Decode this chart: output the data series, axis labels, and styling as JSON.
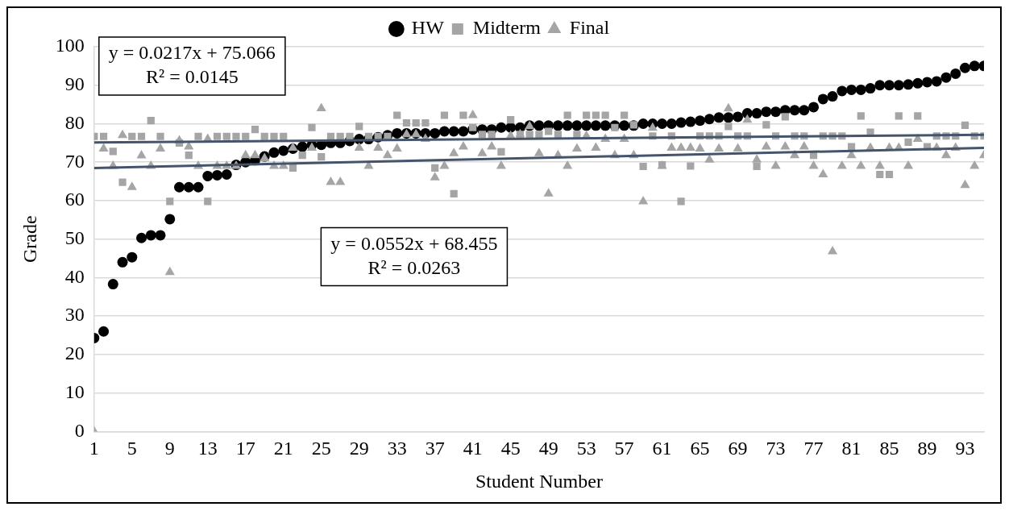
{
  "chart_data": {
    "type": "scatter",
    "xlabel": "Student Number",
    "ylabel": "Grade",
    "xlim": [
      1,
      95
    ],
    "xticks": [
      1,
      5,
      9,
      13,
      17,
      21,
      25,
      29,
      33,
      37,
      41,
      45,
      49,
      53,
      57,
      61,
      65,
      69,
      73,
      77,
      81,
      85,
      89,
      93
    ],
    "ylim": [
      0,
      100
    ],
    "yticks": [
      0,
      10,
      20,
      30,
      40,
      50,
      60,
      70,
      80,
      90,
      100
    ],
    "grid": "y",
    "legend": "top",
    "x": [
      1,
      2,
      3,
      4,
      5,
      6,
      7,
      8,
      9,
      10,
      11,
      12,
      13,
      14,
      15,
      16,
      17,
      18,
      19,
      20,
      21,
      22,
      23,
      24,
      25,
      26,
      27,
      28,
      29,
      30,
      31,
      32,
      33,
      34,
      35,
      36,
      37,
      38,
      39,
      40,
      41,
      42,
      43,
      44,
      45,
      46,
      47,
      48,
      49,
      50,
      51,
      52,
      53,
      54,
      55,
      56,
      57,
      58,
      59,
      60,
      61,
      62,
      63,
      64,
      65,
      66,
      67,
      68,
      69,
      70,
      71,
      72,
      73,
      74,
      75,
      76,
      77,
      78,
      79,
      80,
      81,
      82,
      83,
      84,
      85,
      86,
      87,
      88,
      89,
      90,
      91,
      92,
      93,
      94,
      95
    ],
    "annotations": [
      "y = 0.0217x + 75.066",
      "R² = 0.0145",
      "y = 0.0552x + 68.455",
      "R² = 0.0263"
    ],
    "series": [
      {
        "name": "HW",
        "color": "#000000",
        "marker": "circle",
        "values": [
          24.3,
          26,
          38.3,
          44,
          45.3,
          50.3,
          51,
          51,
          55.2,
          63.5,
          63.5,
          63.5,
          66.4,
          66.6,
          66.8,
          69.3,
          70,
          70.5,
          71.5,
          72.5,
          73,
          73.5,
          74,
          74.5,
          74.5,
          75,
          75,
          75.5,
          76,
          76,
          76.5,
          77,
          77.5,
          77.5,
          77.5,
          77.5,
          77.5,
          78,
          78,
          78,
          78.5,
          78.5,
          78.5,
          79,
          79,
          79,
          79.5,
          79.5,
          79.5,
          79.5,
          79.5,
          79.5,
          79.5,
          79.5,
          79.5,
          79.5,
          79.5,
          79.5,
          80,
          80,
          80,
          80,
          80.3,
          80.5,
          80.8,
          81.2,
          81.6,
          81.6,
          81.8,
          82.7,
          82.7,
          83.1,
          83.1,
          83.5,
          83.5,
          83.5,
          84.3,
          86.4,
          87.1,
          88.5,
          88.8,
          88.8,
          89.2,
          90,
          90,
          90,
          90.2,
          90.5,
          90.8,
          91,
          92,
          93,
          94.5,
          95,
          95
        ]
      },
      {
        "name": "Midterm",
        "color": "#a5a5a5",
        "marker": "square",
        "values": [
          76.7,
          76.7,
          72.8,
          64.8,
          76.7,
          76.7,
          80.8,
          76.7,
          59.8,
          75,
          71.8,
          76.7,
          59.8,
          76.7,
          76.7,
          76.7,
          76.7,
          78.5,
          76.7,
          76.7,
          76.7,
          68.5,
          71.8,
          79,
          71.4,
          76.7,
          76.7,
          76.7,
          79.3,
          76.7,
          76.7,
          76.7,
          82.2,
          80.2,
          80.2,
          80.2,
          68.5,
          82.2,
          61.8,
          82.2,
          79,
          77.2,
          77.2,
          72.7,
          81,
          77.2,
          77.2,
          77.2,
          78,
          77.2,
          82.2,
          77.2,
          82.2,
          82.2,
          82.2,
          79,
          82.2,
          79.7,
          68.9,
          76.8,
          69.3,
          76.8,
          59.8,
          69,
          76.8,
          76.8,
          76.8,
          79.3,
          76.8,
          76.8,
          68.9,
          79.7,
          76.8,
          81.8,
          76.8,
          76.8,
          71.8,
          76.8,
          76.8,
          76.8,
          74,
          82,
          77.8,
          66.8,
          66.8,
          82,
          75.2,
          82,
          74,
          76.8,
          76.8,
          76.8,
          79.6,
          76.8,
          76.8
        ]
      },
      {
        "name": "Final",
        "color": "#a5a5a5",
        "marker": "triangle",
        "values": [
          0,
          73.5,
          69,
          77,
          63.5,
          71.7,
          69,
          73.5,
          41.4,
          75.6,
          74,
          69,
          76,
          69,
          69,
          69,
          71.8,
          71.8,
          71,
          69,
          69,
          73.7,
          null,
          73.7,
          84,
          64.8,
          64.8,
          null,
          73.7,
          69,
          73.7,
          71.8,
          73.5,
          77.2,
          77.2,
          76,
          66,
          69,
          72.3,
          74,
          82.2,
          72.3,
          74,
          69,
          76.8,
          77.2,
          79.3,
          72.3,
          61.8,
          71.8,
          69,
          73.5,
          76.8,
          73.7,
          76,
          71.8,
          76,
          71.8,
          59.8,
          78.9,
          69,
          73.7,
          73.7,
          73.7,
          73.5,
          70.6,
          73.5,
          83.9,
          73.5,
          81,
          70.6,
          74,
          69,
          74,
          71.8,
          74,
          69,
          66.8,
          46.8,
          69,
          71.8,
          69,
          73.7,
          69,
          73.7,
          73.7,
          69,
          76,
          null,
          73.7,
          71.8,
          73.7,
          64,
          69,
          71.8
        ]
      },
      {
        "type": "line",
        "color": "#44546a",
        "values": [
          75.1,
          null,
          null,
          null,
          null,
          null,
          null,
          null,
          null,
          null,
          null,
          null,
          null,
          null,
          null,
          null,
          null,
          null,
          null,
          null,
          null,
          null,
          null,
          null,
          null,
          null,
          null,
          null,
          null,
          null,
          null,
          null,
          null,
          null,
          null,
          null,
          null,
          null,
          null,
          null,
          null,
          null,
          null,
          null,
          null,
          null,
          null,
          null,
          null,
          null,
          null,
          null,
          null,
          null,
          null,
          null,
          null,
          null,
          null,
          null,
          null,
          null,
          null,
          null,
          null,
          null,
          null,
          null,
          null,
          null,
          null,
          null,
          null,
          null,
          null,
          null,
          null,
          null,
          null,
          null,
          null,
          null,
          null,
          null,
          null,
          null,
          null,
          null,
          null,
          null,
          null,
          null,
          null,
          null,
          77.1
        ]
      },
      {
        "type": "line",
        "color": "#44546a",
        "values": [
          68.5,
          null,
          null,
          null,
          null,
          null,
          null,
          null,
          null,
          null,
          null,
          null,
          null,
          null,
          null,
          null,
          null,
          null,
          null,
          null,
          null,
          null,
          null,
          null,
          null,
          null,
          null,
          null,
          null,
          null,
          null,
          null,
          null,
          null,
          null,
          null,
          null,
          null,
          null,
          null,
          null,
          null,
          null,
          null,
          null,
          null,
          null,
          null,
          null,
          null,
          null,
          null,
          null,
          null,
          null,
          null,
          null,
          null,
          null,
          null,
          null,
          null,
          null,
          null,
          null,
          null,
          null,
          null,
          null,
          null,
          null,
          null,
          null,
          null,
          null,
          null,
          null,
          null,
          null,
          null,
          null,
          null,
          null,
          null,
          null,
          null,
          null,
          null,
          null,
          null,
          null,
          null,
          null,
          null,
          73.7
        ]
      }
    ]
  }
}
